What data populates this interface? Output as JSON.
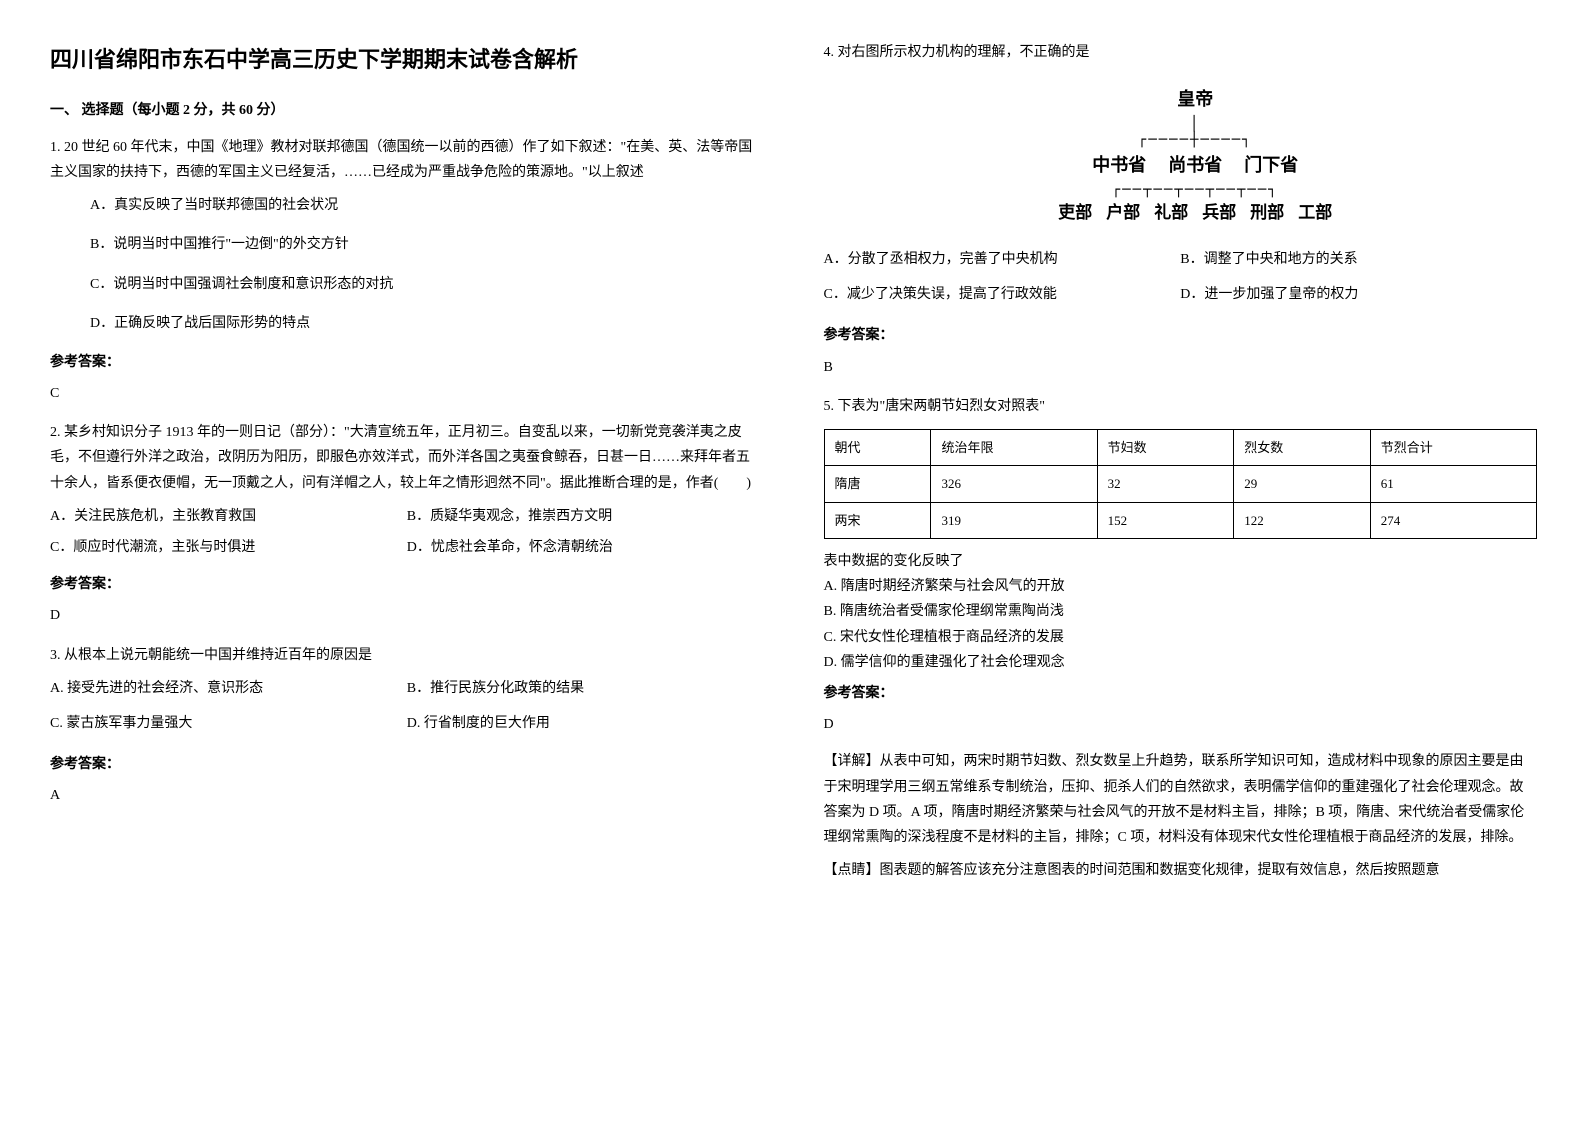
{
  "title": "四川省绵阳市东石中学高三历史下学期期末试卷含解析",
  "section1_heading": "一、 选择题（每小题 2 分，共 60 分）",
  "q1": {
    "text": "1. 20 世纪 60 年代末，中国《地理》教材对联邦德国（德国统一以前的西德）作了如下叙述：\"在美、英、法等帝国主义国家的扶持下，西德的军国主义已经复活，……已经成为严重战争危险的策源地。\"以上叙述",
    "optA": "A．真实反映了当时联邦德国的社会状况",
    "optB": "B．说明当时中国推行\"一边倒\"的外交方针",
    "optC": "C．说明当时中国强调社会制度和意识形态的对抗",
    "optD": "D．正确反映了战后国际形势的特点",
    "answer_label": "参考答案：",
    "answer": "C"
  },
  "q2": {
    "text": "2. 某乡村知识分子 1913 年的一则日记（部分）：\"大清宣统五年，正月初三。自变乱以来，一切新党竞袭洋夷之皮毛，不但遵行外洋之政治，改阴历为阳历，即服色亦效洋式，而外洋各国之夷蚕食鲸吞，日甚一日……来拜年者五十余人，皆系便衣便帽，无一顶戴之人，问有洋帽之人，较上年之情形迥然不同\"。据此推断合理的是，作者(　　)",
    "optA": "A．关注民族危机，主张教育救国",
    "optB": "B．质疑华夷观念，推崇西方文明",
    "optC": "C．顺应时代潮流，主张与时俱进",
    "optD": "D．忧虑社会革命，怀念清朝统治",
    "answer_label": "参考答案：",
    "answer": "D"
  },
  "q3": {
    "text": "3. 从根本上说元朝能统一中国并维持近百年的原因是",
    "optA": "A. 接受先进的社会经济、意识形态",
    "optB": "B．推行民族分化政策的结果",
    "optC": "C. 蒙古族军事力量强大",
    "optD": "D. 行省制度的巨大作用",
    "answer_label": "参考答案：",
    "answer": "A"
  },
  "q4": {
    "text": "4. 对右图所示权力机构的理解，不正确的是",
    "diagram": {
      "top": "皇帝",
      "mid": [
        "中书省",
        "尚书省",
        "门下省"
      ],
      "bottom": [
        "吏部",
        "户部",
        "礼部",
        "兵部",
        "刑部",
        "工部"
      ]
    },
    "optA": "A．分散了丞相权力，完善了中央机构",
    "optB": "B．调整了中央和地方的关系",
    "optC": "C．减少了决策失误，提高了行政效能",
    "optD": "D．进一步加强了皇帝的权力",
    "answer_label": "参考答案：",
    "answer": "B"
  },
  "q5": {
    "text": "5. 下表为\"唐宋两朝节妇烈女对照表\"",
    "table": {
      "headers": [
        "朝代",
        "统治年限",
        "节妇数",
        "烈女数",
        "节烈合计"
      ],
      "rows": [
        [
          "隋唐",
          "326",
          "32",
          "29",
          "61"
        ],
        [
          "两宋",
          "319",
          "152",
          "122",
          "274"
        ]
      ]
    },
    "after_table": "表中数据的变化反映了",
    "optA": "A. 隋唐时期经济繁荣与社会风气的开放",
    "optB": "B. 隋唐统治者受儒家伦理纲常熏陶尚浅",
    "optC": "C. 宋代女性伦理植根于商品经济的发展",
    "optD": "D. 儒学信仰的重建强化了社会伦理观念",
    "answer_label": "参考答案：",
    "answer": "D",
    "explanation1": "【详解】从表中可知，两宋时期节妇数、烈女数呈上升趋势，联系所学知识可知，造成材料中现象的原因主要是由于宋明理学用三纲五常维系专制统治，压抑、扼杀人们的自然欲求，表明儒学信仰的重建强化了社会伦理观念。故答案为 D 项。A 项，隋唐时期经济繁荣与社会风气的开放不是材料主旨，排除；B 项，隋唐、宋代统治者受儒家伦理纲常熏陶的深浅程度不是材料的主旨，排除；C 项，材料没有体现宋代女性伦理植根于商品经济的发展，排除。",
    "explanation2": "【点睛】图表题的解答应该充分注意图表的时间范围和数据变化规律，提取有效信息，然后按照题意"
  }
}
